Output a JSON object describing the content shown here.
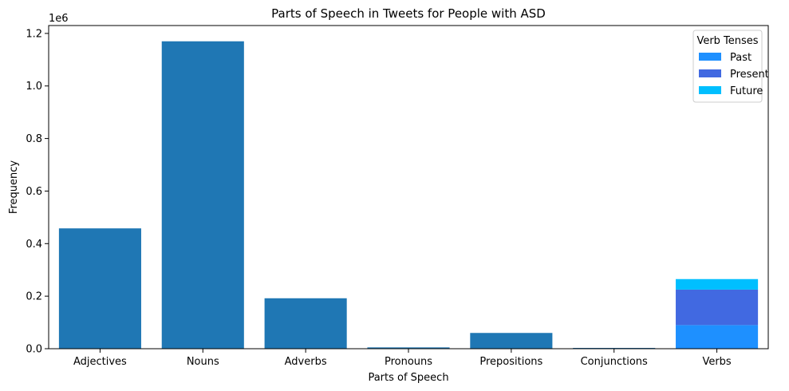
{
  "chart_data": {
    "type": "bar",
    "title": "Parts of Speech in Tweets for People with ASD",
    "xlabel": "Parts of Speech",
    "ylabel": "Frequency",
    "y_scale_label": "1e6",
    "ylim": [
      0,
      1230000
    ],
    "yticks": [
      0.0,
      0.2,
      0.4,
      0.6,
      0.8,
      1.0,
      1.2
    ],
    "ytick_labels": [
      "0.0",
      "0.2",
      "0.4",
      "0.6",
      "0.8",
      "1.0",
      "1.2"
    ],
    "categories": [
      "Adjectives",
      "Nouns",
      "Adverbs",
      "Pronouns",
      "Prepositions",
      "Conjunctions",
      "Verbs"
    ],
    "values": [
      458000,
      1170000,
      192000,
      5000,
      60000,
      3000,
      null
    ],
    "bar_color": "#1f77b4",
    "stacked_category": "Verbs",
    "stack_series": [
      {
        "name": "Past",
        "value": 90000,
        "color": "#1e90ff"
      },
      {
        "name": "Present",
        "value": 135000,
        "color": "#4169e1"
      },
      {
        "name": "Future",
        "value": 40000,
        "color": "#00bfff"
      }
    ],
    "legend": {
      "title": "Verb Tenses",
      "position": "upper-right"
    },
    "grid": false
  }
}
